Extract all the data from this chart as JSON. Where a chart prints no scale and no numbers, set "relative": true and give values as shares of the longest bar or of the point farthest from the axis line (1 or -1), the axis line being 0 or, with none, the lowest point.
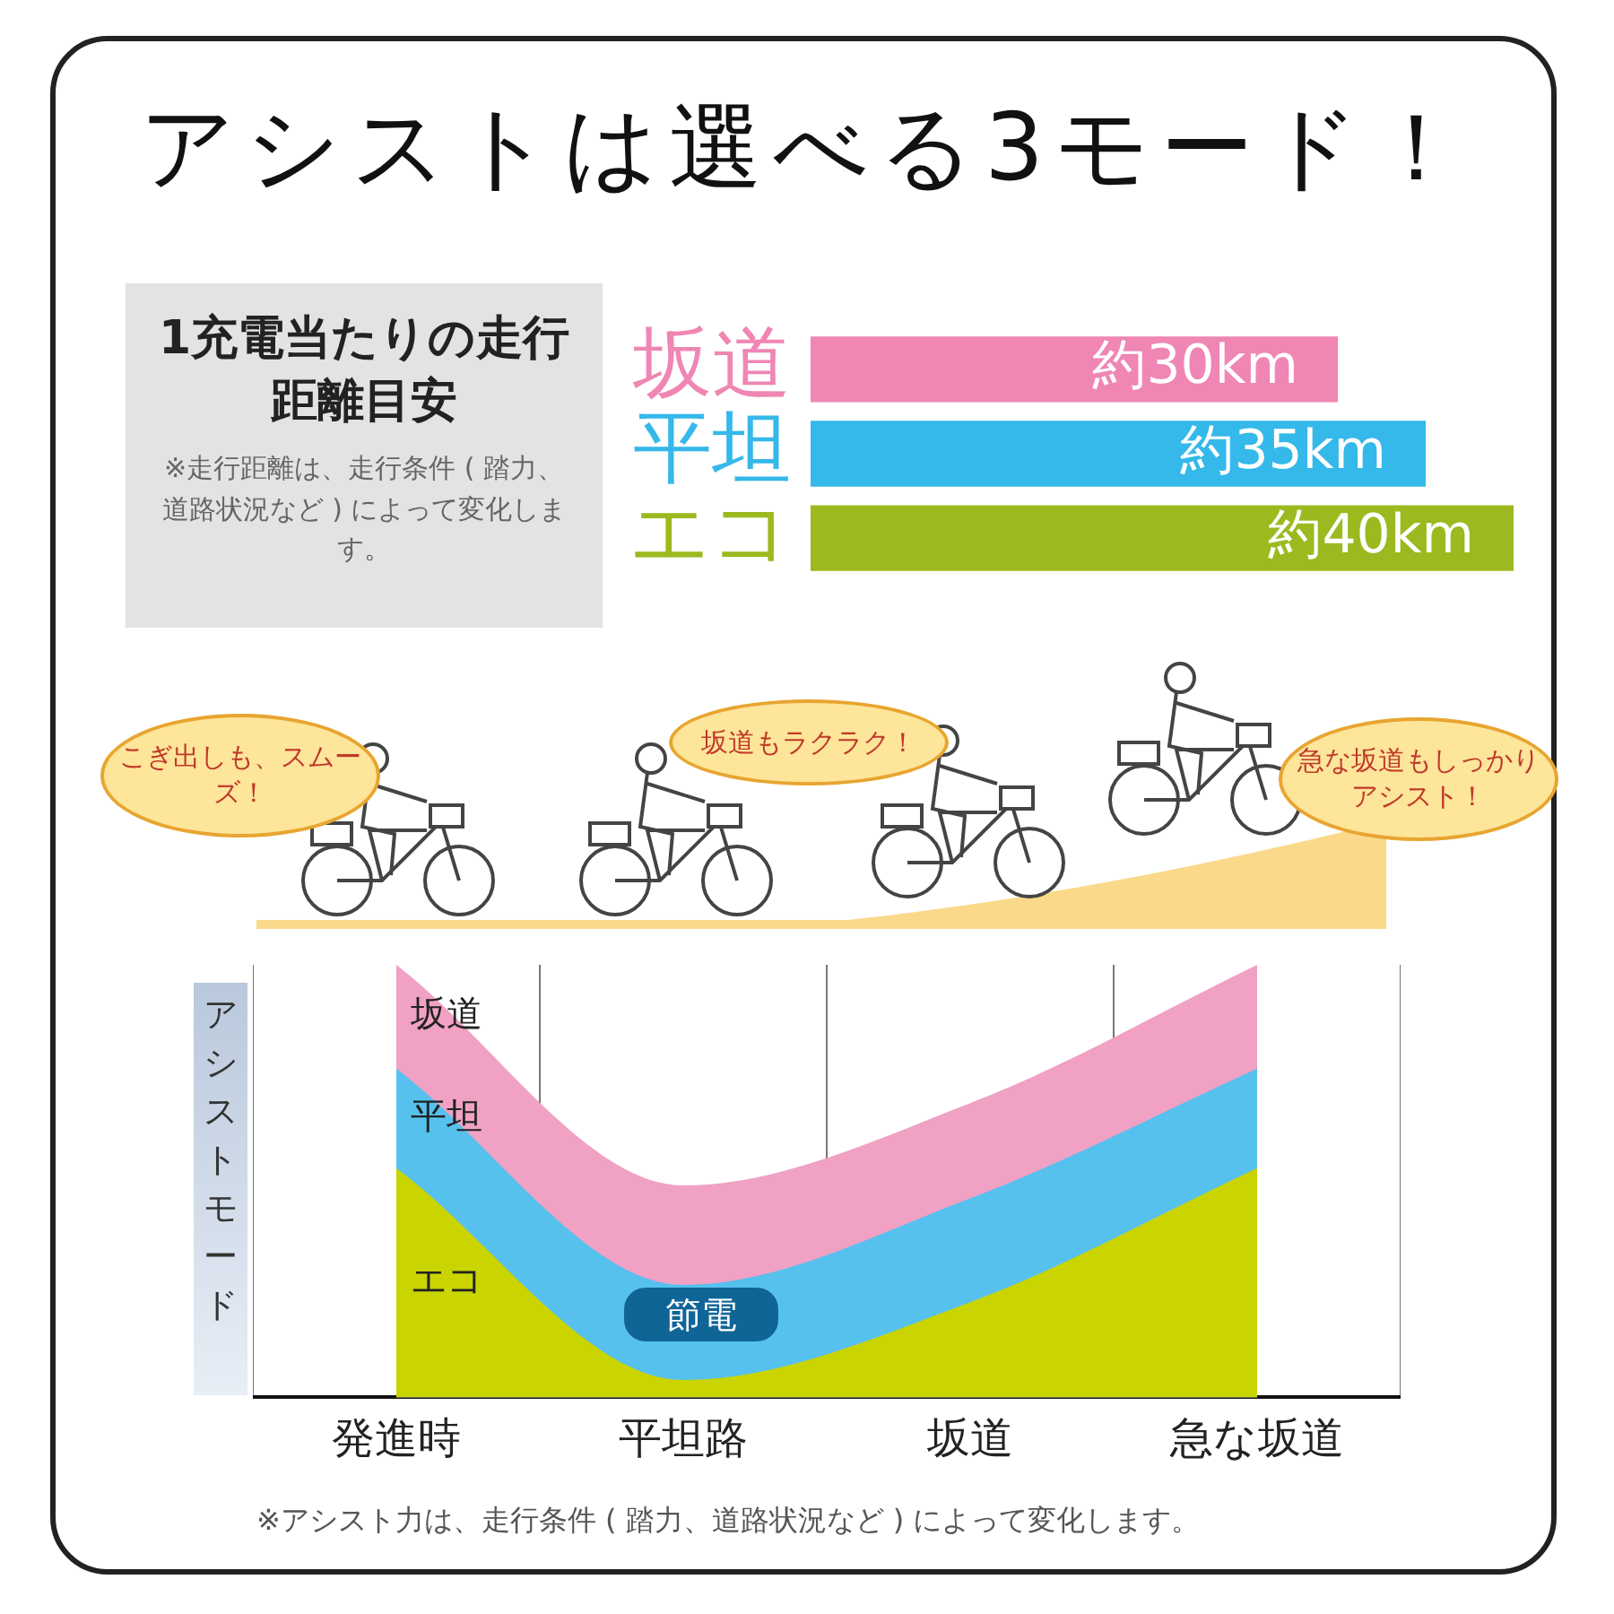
{
  "chart_data": [
    {
      "type": "bar",
      "orientation": "horizontal",
      "title": "アシストは選べる3モード！",
      "subtitle": "1充電当たりの走行距離目安",
      "annotations": [
        "※走行距離は、走行条件 ( 踏力、道路状況など ) によって変化します。"
      ],
      "categories": [
        "坂道",
        "平坦",
        "エコ"
      ],
      "values": [
        30,
        35,
        40
      ],
      "value_labels": [
        "約30km",
        "約35km",
        "約40km"
      ],
      "colors": [
        "#ef86b4",
        "#35b8ea",
        "#9cb91f"
      ],
      "tick_labels": "y"
    },
    {
      "type": "area",
      "relative": true,
      "ylabel": "アシストモード",
      "categories": [
        "発進時",
        "平坦路",
        "坂道",
        "急な坂道"
      ],
      "grid": "x",
      "tick_labels": "x",
      "series": [
        {
          "name": "坂道",
          "color": "#f0a1c4",
          "values": [
            1,
            0.49,
            0.68,
            1
          ]
        },
        {
          "name": "平坦",
          "color": "#57c1ee",
          "values": [
            0.76,
            0.26,
            0.46,
            0.76
          ]
        },
        {
          "name": "エコ",
          "color": "#c9d400",
          "values": [
            0.53,
            0.04,
            0.22,
            0.53
          ]
        }
      ],
      "annotations": [
        "こぎ出しも、スムーズ！",
        "坂道もラクラク！",
        "急な坂道もしっかりアシスト！",
        "節電",
        "※アシスト力は、走行条件 ( 踏力、道路状況など ) によって変化します。"
      ]
    }
  ]
}
